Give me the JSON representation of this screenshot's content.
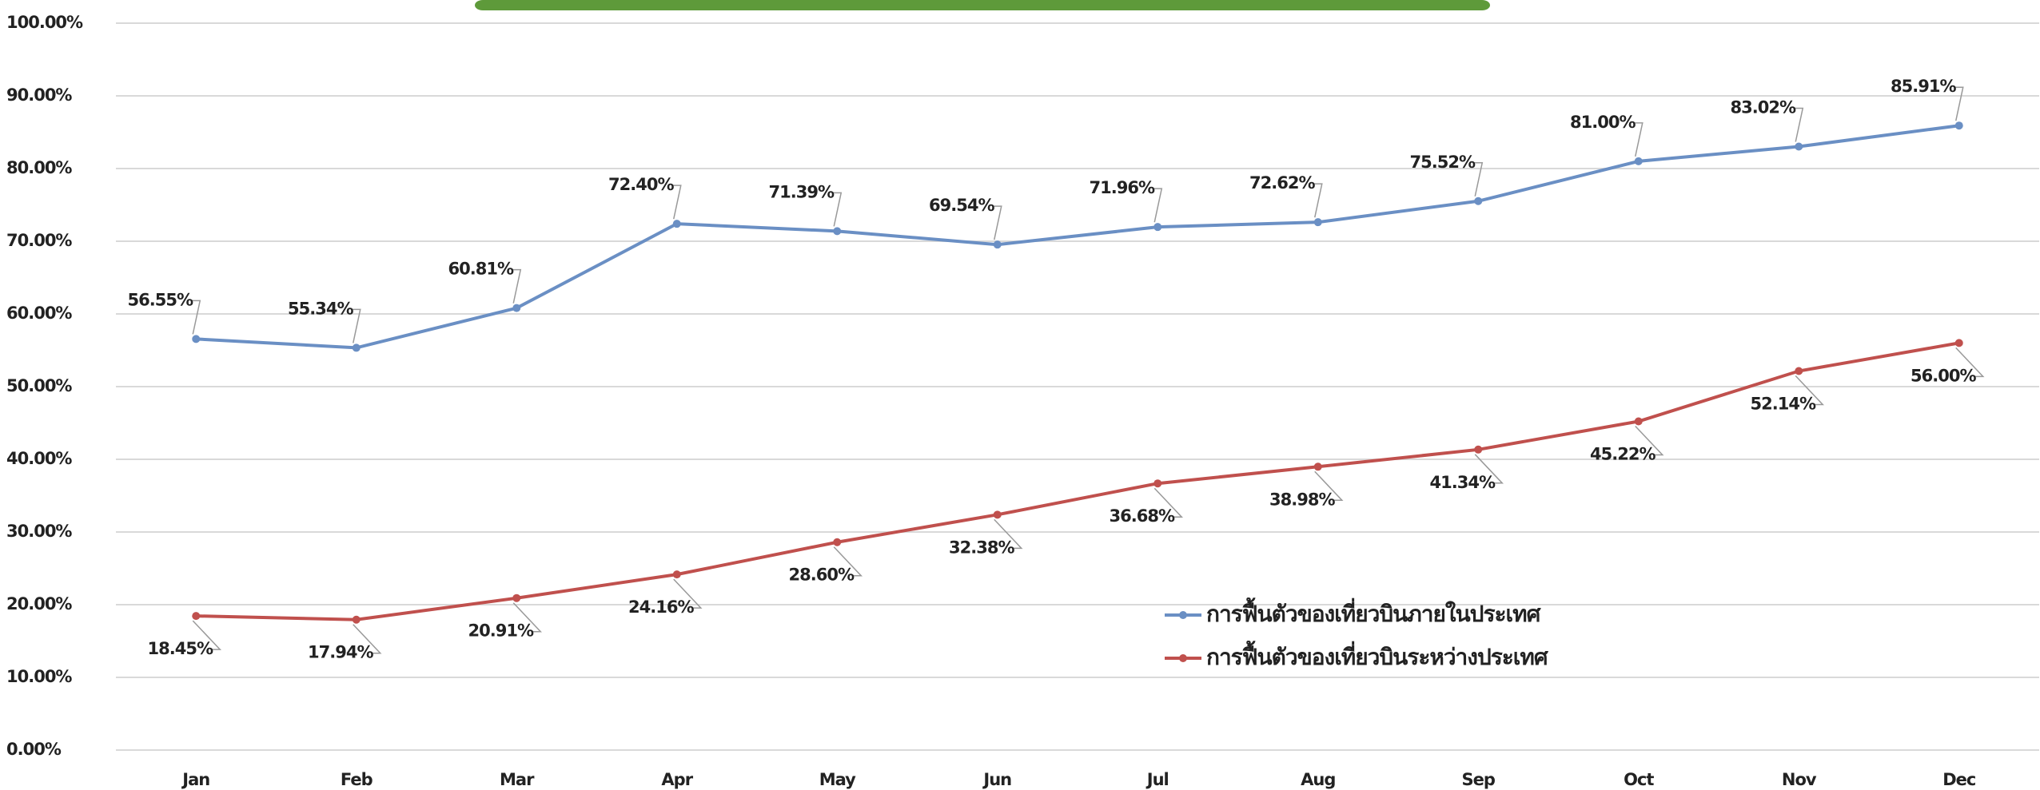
{
  "chart_data": {
    "type": "line",
    "categories": [
      "Jan",
      "Feb",
      "Mar",
      "Apr",
      "May",
      "Jun",
      "Jul",
      "Aug",
      "Sep",
      "Oct",
      "Nov",
      "Dec"
    ],
    "series": [
      {
        "name": "การฟื้นตัวของเที่ยวบินภายในประเทศ",
        "color": "#6a8fc4",
        "values": [
          56.55,
          55.34,
          60.81,
          72.4,
          71.39,
          69.54,
          71.96,
          72.62,
          75.52,
          81.0,
          83.02,
          85.91
        ],
        "value_labels": [
          "56.55%",
          "55.34%",
          "60.81%",
          "72.40%",
          "71.39%",
          "69.54%",
          "71.96%",
          "72.62%",
          "75.52%",
          "81.00%",
          "83.02%",
          "85.91%"
        ]
      },
      {
        "name": "การฟื้นตัวของเที่ยวบินระหว่างประเทศ",
        "color": "#c0504d",
        "values": [
          18.45,
          17.94,
          20.91,
          24.16,
          28.6,
          32.38,
          36.68,
          38.98,
          41.34,
          45.22,
          52.14,
          56.0
        ],
        "value_labels": [
          "18.45%",
          "17.94%",
          "20.91%",
          "24.16%",
          "28.60%",
          "32.38%",
          "36.68%",
          "38.98%",
          "41.34%",
          "45.22%",
          "52.14%",
          "56.00%"
        ]
      }
    ],
    "ylim": [
      0,
      100
    ],
    "yticks": [
      {
        "value": 0,
        "label": "0.00%"
      },
      {
        "value": 10,
        "label": "10.00%"
      },
      {
        "value": 20,
        "label": "20.00%"
      },
      {
        "value": 30,
        "label": "30.00%"
      },
      {
        "value": 40,
        "label": "40.00%"
      },
      {
        "value": 50,
        "label": "50.00%"
      },
      {
        "value": 60,
        "label": "60.00%"
      },
      {
        "value": 70,
        "label": "70.00%"
      },
      {
        "value": 80,
        "label": "80.00%"
      },
      {
        "value": 90,
        "label": "90.00%"
      },
      {
        "value": 100,
        "label": "100.00%"
      }
    ],
    "grid": true,
    "legend": "lower right"
  }
}
